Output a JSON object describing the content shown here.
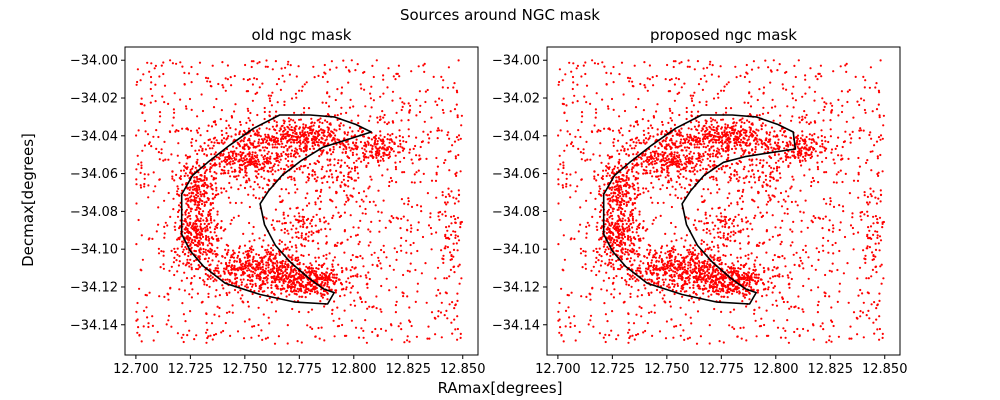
{
  "figure": {
    "suptitle": "Sources around NGC mask",
    "xlabel": "RAmax[degrees]",
    "ylabel": "Decmax[degrees]"
  },
  "chart_data": [
    {
      "type": "scatter",
      "title": "old ngc mask",
      "xlim": [
        12.695,
        12.857
      ],
      "ylim": [
        -34.156,
        -33.993
      ],
      "xticks": [
        12.7,
        12.725,
        12.75,
        12.775,
        12.8,
        12.825,
        12.85
      ],
      "xtick_labels": [
        "12.700",
        "12.725",
        "12.750",
        "12.775",
        "12.800",
        "12.825",
        "12.850"
      ],
      "yticks": [
        -34.0,
        -34.02,
        -34.04,
        -34.06,
        -34.08,
        -34.1,
        -34.12,
        -34.14
      ],
      "ytick_labels": [
        "−34.00",
        "−34.02",
        "−34.04",
        "−34.06",
        "−34.08",
        "−34.10",
        "−34.12",
        "−34.14"
      ],
      "grid": false,
      "points_color": "#ff0000",
      "mask_color": "#000000",
      "point_distribution": {
        "x_range": [
          12.7,
          12.85
        ],
        "y_range": [
          -34.15,
          -34.0
        ],
        "background_points": 1300,
        "seed": 1,
        "clusters": [
          {
            "cx": 12.778,
            "cy": -34.041,
            "sx": 0.014,
            "sy": 0.005,
            "n": 420
          },
          {
            "cx": 12.75,
            "cy": -34.053,
            "sx": 0.013,
            "sy": 0.007,
            "n": 380
          },
          {
            "cx": 12.728,
            "cy": -34.068,
            "sx": 0.005,
            "sy": 0.006,
            "n": 160
          },
          {
            "cx": 12.728,
            "cy": -34.092,
            "sx": 0.005,
            "sy": 0.009,
            "n": 300
          },
          {
            "cx": 12.757,
            "cy": -34.111,
            "sx": 0.014,
            "sy": 0.006,
            "n": 560
          },
          {
            "cx": 12.781,
            "cy": -34.117,
            "sx": 0.009,
            "sy": 0.004,
            "n": 300
          },
          {
            "cx": 12.812,
            "cy": -34.047,
            "sx": 0.008,
            "sy": 0.004,
            "n": 150
          },
          {
            "cx": 12.79,
            "cy": -34.06,
            "sx": 0.009,
            "sy": 0.006,
            "n": 90
          },
          {
            "cx": 12.778,
            "cy": -34.09,
            "sx": 0.007,
            "sy": 0.007,
            "n": 80
          },
          {
            "cx": 12.845,
            "cy": -34.09,
            "sx": 0.004,
            "sy": 0.02,
            "n": 70
          }
        ]
      },
      "mask_polygon": [
        [
          12.766,
          -34.029
        ],
        [
          12.78,
          -34.029
        ],
        [
          12.791,
          -34.03
        ],
        [
          12.801,
          -34.034
        ],
        [
          12.808,
          -34.038
        ],
        [
          12.797,
          -34.042
        ],
        [
          12.786,
          -34.046
        ],
        [
          12.776,
          -34.053
        ],
        [
          12.767,
          -34.061
        ],
        [
          12.761,
          -34.069
        ],
        [
          12.757,
          -34.076
        ],
        [
          12.759,
          -34.087
        ],
        [
          12.764,
          -34.098
        ],
        [
          12.771,
          -34.107
        ],
        [
          12.779,
          -34.115
        ],
        [
          12.786,
          -34.121
        ],
        [
          12.791,
          -34.123
        ],
        [
          12.788,
          -34.129
        ],
        [
          12.773,
          -34.128
        ],
        [
          12.757,
          -34.124
        ],
        [
          12.741,
          -34.118
        ],
        [
          12.731,
          -34.109
        ],
        [
          12.725,
          -34.101
        ],
        [
          12.721,
          -34.092
        ],
        [
          12.721,
          -34.083
        ],
        [
          12.721,
          -34.071
        ],
        [
          12.726,
          -34.061
        ],
        [
          12.733,
          -34.054
        ],
        [
          12.743,
          -34.045
        ],
        [
          12.754,
          -34.036
        ]
      ]
    },
    {
      "type": "scatter",
      "title": "proposed ngc mask",
      "xlim": [
        12.695,
        12.857
      ],
      "ylim": [
        -34.156,
        -33.993
      ],
      "xticks": [
        12.7,
        12.725,
        12.75,
        12.775,
        12.8,
        12.825,
        12.85
      ],
      "xtick_labels": [
        "12.700",
        "12.725",
        "12.750",
        "12.775",
        "12.800",
        "12.825",
        "12.850"
      ],
      "yticks": [
        -34.0,
        -34.02,
        -34.04,
        -34.06,
        -34.08,
        -34.1,
        -34.12,
        -34.14
      ],
      "ytick_labels": [
        "−34.00",
        "−34.02",
        "−34.04",
        "−34.06",
        "−34.08",
        "−34.10",
        "−34.12",
        "−34.14"
      ],
      "grid": false,
      "points_color": "#ff0000",
      "mask_color": "#000000",
      "point_distribution": {
        "x_range": [
          12.7,
          12.85
        ],
        "y_range": [
          -34.15,
          -34.0
        ],
        "background_points": 1300,
        "seed": 1,
        "clusters": [
          {
            "cx": 12.778,
            "cy": -34.041,
            "sx": 0.014,
            "sy": 0.005,
            "n": 420
          },
          {
            "cx": 12.75,
            "cy": -34.053,
            "sx": 0.013,
            "sy": 0.007,
            "n": 380
          },
          {
            "cx": 12.728,
            "cy": -34.068,
            "sx": 0.005,
            "sy": 0.006,
            "n": 160
          },
          {
            "cx": 12.728,
            "cy": -34.092,
            "sx": 0.005,
            "sy": 0.009,
            "n": 300
          },
          {
            "cx": 12.757,
            "cy": -34.111,
            "sx": 0.014,
            "sy": 0.006,
            "n": 560
          },
          {
            "cx": 12.781,
            "cy": -34.117,
            "sx": 0.009,
            "sy": 0.004,
            "n": 300
          },
          {
            "cx": 12.812,
            "cy": -34.047,
            "sx": 0.008,
            "sy": 0.004,
            "n": 150
          },
          {
            "cx": 12.79,
            "cy": -34.06,
            "sx": 0.009,
            "sy": 0.006,
            "n": 90
          },
          {
            "cx": 12.778,
            "cy": -34.09,
            "sx": 0.007,
            "sy": 0.007,
            "n": 80
          },
          {
            "cx": 12.845,
            "cy": -34.09,
            "sx": 0.004,
            "sy": 0.02,
            "n": 70
          }
        ]
      },
      "mask_polygon": [
        [
          12.766,
          -34.029
        ],
        [
          12.78,
          -34.029
        ],
        [
          12.791,
          -34.03
        ],
        [
          12.801,
          -34.034
        ],
        [
          12.808,
          -34.038
        ],
        [
          12.809,
          -34.047
        ],
        [
          12.797,
          -34.049
        ],
        [
          12.786,
          -34.051
        ],
        [
          12.776,
          -34.054
        ],
        [
          12.767,
          -34.061
        ],
        [
          12.761,
          -34.069
        ],
        [
          12.757,
          -34.076
        ],
        [
          12.759,
          -34.087
        ],
        [
          12.764,
          -34.098
        ],
        [
          12.771,
          -34.107
        ],
        [
          12.779,
          -34.115
        ],
        [
          12.786,
          -34.121
        ],
        [
          12.791,
          -34.123
        ],
        [
          12.788,
          -34.129
        ],
        [
          12.773,
          -34.128
        ],
        [
          12.757,
          -34.124
        ],
        [
          12.741,
          -34.118
        ],
        [
          12.731,
          -34.109
        ],
        [
          12.725,
          -34.101
        ],
        [
          12.721,
          -34.092
        ],
        [
          12.721,
          -34.083
        ],
        [
          12.721,
          -34.071
        ],
        [
          12.726,
          -34.061
        ],
        [
          12.733,
          -34.054
        ],
        [
          12.743,
          -34.045
        ],
        [
          12.754,
          -34.036
        ]
      ]
    }
  ]
}
